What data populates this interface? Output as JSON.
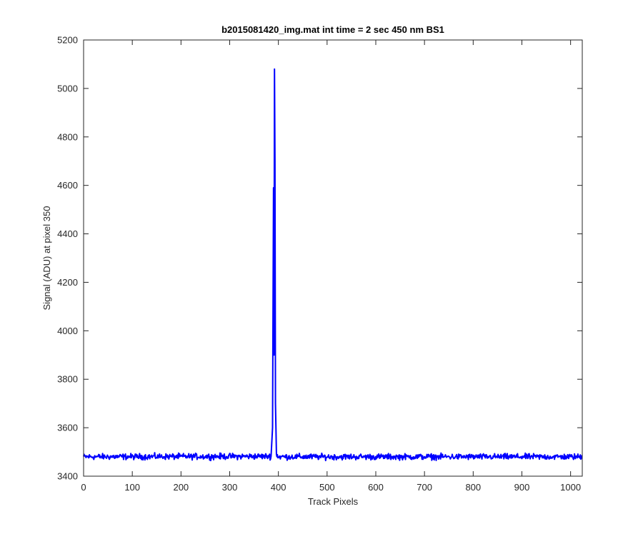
{
  "chart_data": {
    "type": "line",
    "title": "b2015081420_img.mat int time = 2 sec  450 nm BS1",
    "xlabel": "Track Pixels",
    "ylabel": "Signal (ADU) at pixel 350",
    "xlim": [
      0,
      1024
    ],
    "ylim": [
      3400,
      5200
    ],
    "xticks": [
      0,
      100,
      200,
      300,
      400,
      500,
      600,
      700,
      800,
      900,
      1000
    ],
    "yticks": [
      3400,
      3600,
      3800,
      4000,
      4200,
      4400,
      4600,
      4800,
      5000,
      5200
    ],
    "grid": false,
    "legend": "none",
    "series": [
      {
        "color": "#0000ff",
        "baseline": 3480,
        "noise_amplitude": 12,
        "x": [
          0,
          385,
          388,
          390,
          391,
          392,
          393,
          394,
          396,
          400,
          1024
        ],
        "values": [
          3480,
          3482,
          3600,
          4590,
          3900,
          5080,
          4700,
          3700,
          3490,
          3480,
          3480
        ]
      }
    ]
  }
}
